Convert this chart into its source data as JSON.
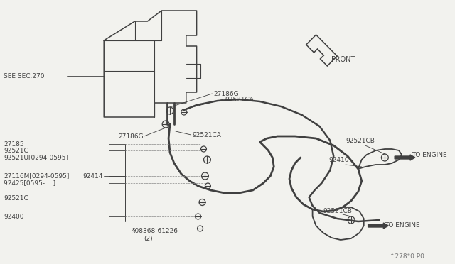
{
  "bg_color": "#f2f2ee",
  "line_color": "#404040",
  "watermark": "^278*0 P0",
  "font_size": 6.5,
  "labels": {
    "see_sec": "SEE SEC.270",
    "front": "FRONT",
    "27186G_top": "27186G",
    "92521CA_top": "92521CA",
    "27186G_bot": "27186G",
    "92521CA_mid": "92521CA",
    "27185": "27185",
    "92521C_1": "92521C",
    "92521U": "92521U[0294-0595]",
    "92414": "92414",
    "27116M": "27116M[0294-0595]",
    "92425": "92425[0595-    ]",
    "92521C_2": "92521C",
    "92400": "92400",
    "08368": "§08368-61226",
    "qty": "(2)",
    "92521CB_top": "92521CB",
    "92410": "92410",
    "to_engine_top": "TO ENGINE",
    "92521CB_bot": "92521CB",
    "to_engine_bot": "TO ENGINE"
  }
}
